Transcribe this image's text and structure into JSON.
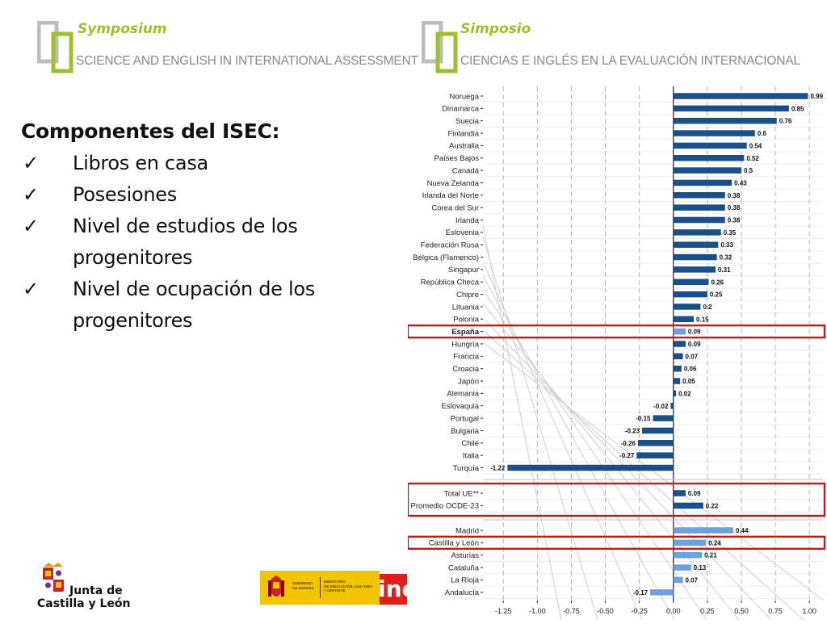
{
  "header_left": {
    "brand": "Symposium",
    "subtitle": "SCIENCE AND ENGLISH IN INTERNATIONAL ASSESSMENT"
  },
  "header_right": {
    "brand": "Simposio",
    "subtitle": "CIENCIAS E INGLÉS EN LA  EVALUACIÓN INTERNACIONAL"
  },
  "content": {
    "heading": "Componentes del ISEC:",
    "bullets": [
      "Libros en casa",
      "Posesiones",
      "Nivel de estudios de los progenitores",
      "Nivel de ocupación de los progenitores"
    ]
  },
  "footer": {
    "jcyl_line1": "Junta de",
    "jcyl_line2": "Castilla y León",
    "gov_line1": "GOBIERNO\nDE ESPAÑA",
    "gov_line2": "MINISTERIO\nDE EDUCACIÓN, CULTURA\nY DEPORTE",
    "ine_text": "ine"
  },
  "colors": {
    "dark_bar": "#1b4f8a",
    "light_bar": "#6f9fdf",
    "highlight": "#c01a1a",
    "brand_green": "#9fbf2e"
  },
  "chart_data": {
    "type": "bar",
    "orientation": "horizontal",
    "xlim": [
      -1.4,
      1.1
    ],
    "xticks": [
      -1.25,
      -1.0,
      -0.75,
      -0.5,
      -0.25,
      0.0,
      0.25,
      0.5,
      0.75,
      1.0
    ],
    "xtick_labels": [
      "-1.25",
      "-1.00",
      "-0.75",
      "-0.50",
      "-0.25",
      "0.00",
      "0.25",
      "0.50",
      "0.75",
      "1.00"
    ],
    "grid": true,
    "groups": [
      {
        "categories": [
          "Noruega",
          "Dinamarca",
          "Suecia",
          "Finlandia",
          "Australia",
          "Países Bajos",
          "Canadá",
          "Nueva Zelanda",
          "Irlanda del Norte",
          "Corea del Sur",
          "Irlanda",
          "Eslovenia",
          "Federación Rusa",
          "Bélgica (Flamenco)",
          "Singapur",
          "República Checa",
          "Chipre",
          "Lituania",
          "Polonia",
          "España",
          "Hungría",
          "Francia",
          "Croacia",
          "Japón",
          "Alemania",
          "Eslovaquia",
          "Portugal",
          "Bulgaria",
          "Chile",
          "Italia",
          "Turquía"
        ],
        "values": [
          0.99,
          0.85,
          0.76,
          0.6,
          0.54,
          0.52,
          0.5,
          0.43,
          0.38,
          0.38,
          0.38,
          0.35,
          0.33,
          0.32,
          0.31,
          0.26,
          0.25,
          0.2,
          0.15,
          0.09,
          0.09,
          0.07,
          0.06,
          0.05,
          0.02,
          -0.02,
          -0.15,
          -0.23,
          -0.26,
          -0.27,
          -1.22
        ],
        "value_labels": [
          "0.99",
          "0.85",
          "0.76",
          "0.6",
          "0.54",
          "0.52",
          "0.5",
          "0.43",
          "0.38",
          "0.38",
          "0.38",
          "0.35",
          "0.33",
          "0.32",
          "0.31",
          "0.26",
          "0.25",
          "0.2",
          "0.15",
          "0.09",
          "0.09",
          "0.07",
          "0.06",
          "0.05",
          "0.02",
          "-0.02",
          "-0.15",
          "-0.23",
          "-0.26",
          "-0.27",
          "-1.22"
        ],
        "light_indices": [
          19
        ],
        "bold_indices": [
          19
        ]
      },
      {
        "categories": [
          "Total UE**",
          "Promedio OCDE-23"
        ],
        "values": [
          0.09,
          0.22
        ],
        "value_labels": [
          "0.09",
          "0.22"
        ],
        "light_indices": [],
        "bold_indices": []
      },
      {
        "categories": [
          "Madrid",
          "Castilla y León",
          "Asturias",
          "Cataluña",
          "La Rioja",
          "Andalucía"
        ],
        "values": [
          0.44,
          0.24,
          0.21,
          0.13,
          0.07,
          -0.17
        ],
        "value_labels": [
          "0.44",
          "0.24",
          "0.21",
          "0.13",
          "0.07",
          "-0.17"
        ],
        "light_indices": [
          0,
          1,
          2,
          3,
          4,
          5
        ],
        "bold_indices": []
      }
    ],
    "highlighted": [
      "España",
      "Total UE**",
      "Promedio OCDE-23",
      "Castilla y León"
    ]
  }
}
